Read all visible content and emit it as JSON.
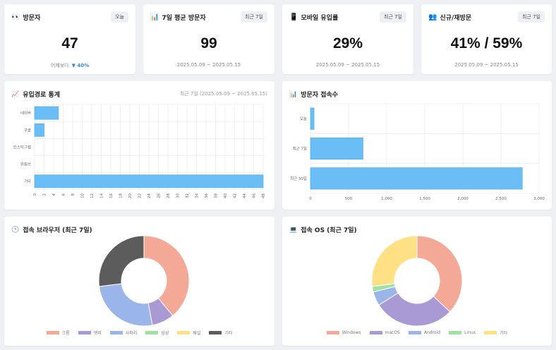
{
  "kpis": [
    {
      "icon": "👀",
      "title": "방문자",
      "badge": "오늘",
      "value": "47",
      "sub_label": "어제보다",
      "delta": "▼ 40%"
    },
    {
      "icon": "📊",
      "title": "7일 평균 방문자",
      "badge": "최근 7일",
      "value": "99",
      "sub_label": "2025.05.09 ~ 2025.05.15"
    },
    {
      "icon": "📱",
      "title": "모바일 유입률",
      "badge": "최근 7일",
      "value": "29%",
      "sub_label": "2025.05.09 ~ 2025.05.15"
    },
    {
      "icon": "👥",
      "title": "신규/재방문",
      "badge": "최근 7일",
      "value": "41% / 59%",
      "sub_label": "2025.05.09 ~ 2025.05.15"
    }
  ],
  "referral": {
    "icon": "📈",
    "title": "유입경로 통계",
    "range": "최근 7일 (2025.05.09 ~ 2025.05.15)"
  },
  "visitors": {
    "icon": "📊",
    "title": "방문자 접속수"
  },
  "browser": {
    "icon": "🕑",
    "title": "접속 브라우저 (최근 7일)"
  },
  "os": {
    "icon": "💻",
    "title": "접속 OS (최근 7일)"
  },
  "colors": {
    "bar_fill": "#6bbdf5",
    "bar_stroke": "#41a8ee",
    "grid": "#e4e4e4"
  },
  "chart_data": [
    {
      "type": "bar",
      "orientation": "horizontal",
      "categories": [
        "네이버",
        "구글",
        "인스타그램",
        "유튜브",
        "기타"
      ],
      "values": [
        5,
        2,
        0,
        0,
        48
      ],
      "xlim": [
        0,
        48
      ],
      "xticks": [
        0,
        2,
        4,
        6,
        8,
        10,
        12,
        14,
        16,
        18,
        20,
        22,
        24,
        26,
        28,
        30,
        32,
        34,
        36,
        38,
        40,
        42,
        44,
        46,
        48
      ],
      "grid": true
    },
    {
      "type": "bar",
      "orientation": "horizontal",
      "categories": [
        "오늘",
        "최근 7일",
        "최근 30일"
      ],
      "values": [
        47,
        690,
        2780
      ],
      "xlim": [
        0,
        3000
      ],
      "xticks": [
        0,
        500,
        1000,
        1500,
        2000,
        2500,
        3000
      ],
      "xtick_labels": [
        "0",
        "500",
        "1,000",
        "1,500",
        "2,000",
        "2,500",
        "3,000"
      ],
      "grid": true
    },
    {
      "type": "pie",
      "donut": true,
      "labels": [
        "크롬",
        "엣지",
        "사파리",
        "삼성",
        "웨일",
        "기타"
      ],
      "values": [
        39,
        8,
        26,
        0,
        0,
        27
      ],
      "colors": [
        "#f4a896",
        "#a99ad6",
        "#99b5e9",
        "#9ee2a4",
        "#fde184",
        "#5c5c5c"
      ],
      "legend": "bottom"
    },
    {
      "type": "pie",
      "donut": true,
      "labels": [
        "Windows",
        "macOS",
        "Android",
        "Linux",
        "기타"
      ],
      "values": [
        37,
        29,
        5,
        2,
        27
      ],
      "colors": [
        "#f4a896",
        "#a99ad6",
        "#99b5e9",
        "#9ee2a4",
        "#fde184"
      ],
      "legend": "bottom"
    }
  ]
}
